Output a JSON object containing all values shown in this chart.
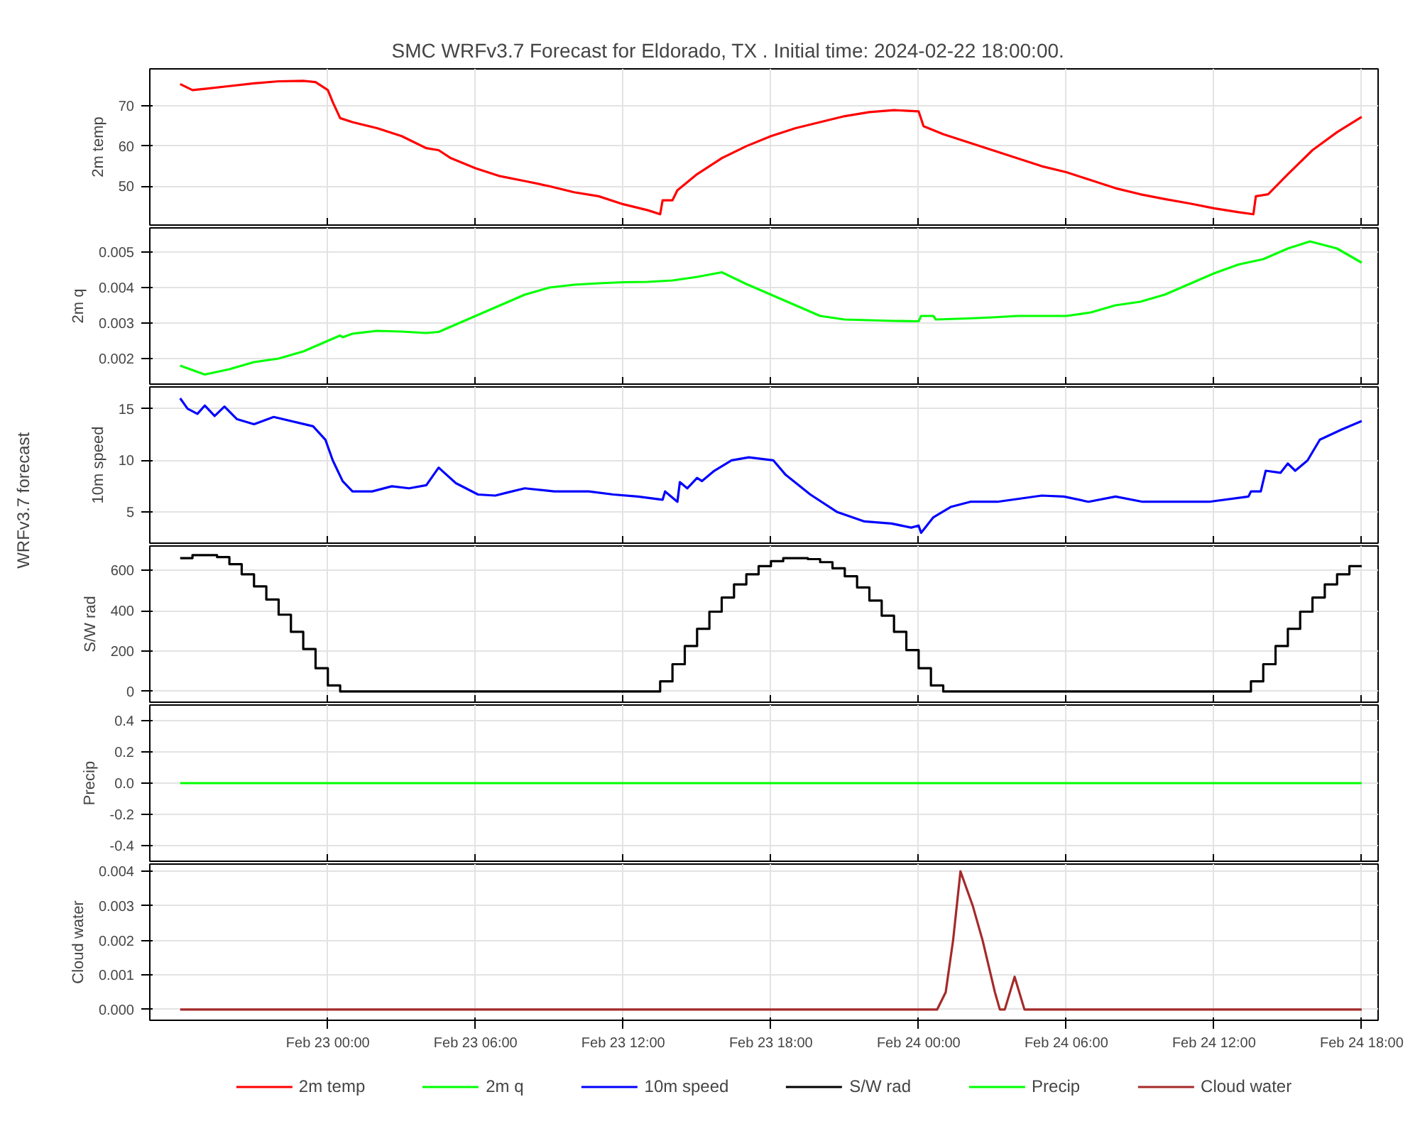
{
  "chart_data": [
    {
      "type": "line",
      "title": "SMC WRFv3.7 Forecast for Eldorado, TX            .  Initial time:  2024-02-22 18:00:00.",
      "ylabel": "2m temp",
      "annotations": [
        "WRFv3.7 forecast"
      ],
      "grid": true,
      "legend": "bottom",
      "tick_labels": "y",
      "xlim": [
        "2024-02-22T16:46",
        "2024-02-24T18:40"
      ],
      "xticks": [
        {
          "value": "2024-02-23T00:00",
          "label": null
        },
        {
          "value": "2024-02-23T06:00",
          "label": null
        },
        {
          "value": "2024-02-23T12:00",
          "label": null
        },
        {
          "value": "2024-02-23T18:00",
          "label": null
        },
        {
          "value": "2024-02-24T00:00",
          "label": null
        },
        {
          "value": "2024-02-24T06:00",
          "label": null
        },
        {
          "value": "2024-02-24T12:00",
          "label": null
        },
        {
          "value": "2024-02-24T18:00",
          "label": null
        }
      ],
      "ylim": [
        40.3,
        79.3
      ],
      "yticks": [
        50,
        60,
        70
      ],
      "series": [
        {
          "name": "2m temp",
          "color": "#ff0000",
          "x": [
            "2024-02-22T18:00",
            "2024-02-22T18:30",
            "2024-02-22T19:00",
            "2024-02-22T20:00",
            "2024-02-22T21:00",
            "2024-02-22T22:00",
            "2024-02-22T23:00",
            "2024-02-22T23:30",
            "2024-02-23T00:00",
            "2024-02-23T00:12",
            "2024-02-23T00:30",
            "2024-02-23T01:00",
            "2024-02-23T02:00",
            "2024-02-23T03:00",
            "2024-02-23T04:00",
            "2024-02-23T04:30",
            "2024-02-23T05:00",
            "2024-02-23T06:00",
            "2024-02-23T07:00",
            "2024-02-23T08:00",
            "2024-02-23T09:00",
            "2024-02-23T10:00",
            "2024-02-23T11:00",
            "2024-02-23T12:00",
            "2024-02-23T13:00",
            "2024-02-23T13:30",
            "2024-02-23T13:36",
            "2024-02-23T14:00",
            "2024-02-23T14:12",
            "2024-02-23T15:00",
            "2024-02-23T16:00",
            "2024-02-23T17:00",
            "2024-02-23T18:00",
            "2024-02-23T19:00",
            "2024-02-23T20:00",
            "2024-02-23T21:00",
            "2024-02-23T22:00",
            "2024-02-23T23:00",
            "2024-02-24T00:00",
            "2024-02-24T00:12",
            "2024-02-24T01:00",
            "2024-02-24T02:00",
            "2024-02-24T03:00",
            "2024-02-24T04:00",
            "2024-02-24T05:00",
            "2024-02-24T06:00",
            "2024-02-24T07:00",
            "2024-02-24T08:00",
            "2024-02-24T09:00",
            "2024-02-24T10:00",
            "2024-02-24T11:00",
            "2024-02-24T12:00",
            "2024-02-24T13:00",
            "2024-02-24T13:36",
            "2024-02-24T13:42",
            "2024-02-24T14:12",
            "2024-02-24T15:00",
            "2024-02-24T16:00",
            "2024-02-24T17:00",
            "2024-02-24T18:00"
          ],
          "values": [
            75.5,
            74,
            74.3,
            75,
            75.7,
            76.2,
            76.3,
            76,
            74,
            71,
            67,
            66,
            64.5,
            62.5,
            59.5,
            59,
            57,
            54.5,
            52.5,
            51.3,
            50,
            48.5,
            47.5,
            45.5,
            44,
            43,
            46.5,
            46.5,
            49,
            53,
            57,
            60,
            62.5,
            64.5,
            66,
            67.5,
            68.5,
            69,
            68.7,
            65,
            63,
            61,
            59,
            57,
            55,
            53.5,
            51.5,
            49.5,
            48,
            46.8,
            45.7,
            44.5,
            43.5,
            43,
            47.5,
            48,
            53,
            59,
            63.5,
            67.3
          ]
        }
      ]
    },
    {
      "type": "line",
      "ylabel": "2m q",
      "grid": true,
      "legend": "bottom",
      "tick_labels": "y",
      "xlim": [
        "2024-02-22T16:46",
        "2024-02-24T18:40"
      ],
      "xticks": [
        {
          "value": "2024-02-23T00:00",
          "label": null
        },
        {
          "value": "2024-02-23T06:00",
          "label": null
        },
        {
          "value": "2024-02-23T12:00",
          "label": null
        },
        {
          "value": "2024-02-23T18:00",
          "label": null
        },
        {
          "value": "2024-02-24T00:00",
          "label": null
        },
        {
          "value": "2024-02-24T06:00",
          "label": null
        },
        {
          "value": "2024-02-24T12:00",
          "label": null
        },
        {
          "value": "2024-02-24T18:00",
          "label": null
        }
      ],
      "ylim": [
        0.00128,
        0.00568
      ],
      "yticks": [
        0.002,
        0.003,
        0.004,
        0.005
      ],
      "series": [
        {
          "name": "2m q",
          "color": "#00ff00",
          "x": [
            "2024-02-22T18:00",
            "2024-02-22T19:00",
            "2024-02-22T20:00",
            "2024-02-22T21:00",
            "2024-02-22T22:00",
            "2024-02-22T23:00",
            "2024-02-23T00:00",
            "2024-02-23T00:30",
            "2024-02-23T00:36",
            "2024-02-23T01:00",
            "2024-02-23T02:00",
            "2024-02-23T03:00",
            "2024-02-23T04:00",
            "2024-02-23T04:30",
            "2024-02-23T05:00",
            "2024-02-23T06:00",
            "2024-02-23T07:00",
            "2024-02-23T08:00",
            "2024-02-23T09:00",
            "2024-02-23T10:00",
            "2024-02-23T11:00",
            "2024-02-23T12:00",
            "2024-02-23T13:00",
            "2024-02-23T14:00",
            "2024-02-23T15:00",
            "2024-02-23T16:00",
            "2024-02-23T17:00",
            "2024-02-23T18:00",
            "2024-02-23T19:00",
            "2024-02-23T20:00",
            "2024-02-23T21:00",
            "2024-02-23T22:00",
            "2024-02-23T23:00",
            "2024-02-24T00:00",
            "2024-02-24T00:06",
            "2024-02-24T00:36",
            "2024-02-24T00:42",
            "2024-02-24T02:00",
            "2024-02-24T03:00",
            "2024-02-24T04:00",
            "2024-02-24T05:00",
            "2024-02-24T06:00",
            "2024-02-24T07:00",
            "2024-02-24T08:00",
            "2024-02-24T09:00",
            "2024-02-24T10:00",
            "2024-02-24T11:00",
            "2024-02-24T12:00",
            "2024-02-24T13:00",
            "2024-02-24T14:00",
            "2024-02-24T15:00",
            "2024-02-24T15:54",
            "2024-02-24T17:00",
            "2024-02-24T18:00"
          ],
          "values": [
            0.0018,
            0.00155,
            0.0017,
            0.0019,
            0.002,
            0.0022,
            0.0025,
            0.00265,
            0.0026,
            0.0027,
            0.00278,
            0.00276,
            0.00272,
            0.00275,
            0.0029,
            0.0032,
            0.0035,
            0.0038,
            0.004,
            0.00408,
            0.00412,
            0.00415,
            0.00416,
            0.0042,
            0.0043,
            0.00443,
            0.0041,
            0.0038,
            0.0035,
            0.0032,
            0.0031,
            0.00308,
            0.00306,
            0.00305,
            0.0032,
            0.0032,
            0.0031,
            0.00313,
            0.00316,
            0.0032,
            0.0032,
            0.0032,
            0.0033,
            0.0035,
            0.0036,
            0.0038,
            0.0041,
            0.0044,
            0.00465,
            0.0048,
            0.0051,
            0.0053,
            0.0051,
            0.0047
          ]
        }
      ]
    },
    {
      "type": "line",
      "ylabel": "10m speed",
      "grid": true,
      "legend": "bottom",
      "tick_labels": "y",
      "xlim": [
        "2024-02-22T16:46",
        "2024-02-24T18:40"
      ],
      "xticks": [
        {
          "value": "2024-02-23T00:00",
          "label": null
        },
        {
          "value": "2024-02-23T06:00",
          "label": null
        },
        {
          "value": "2024-02-23T12:00",
          "label": null
        },
        {
          "value": "2024-02-23T18:00",
          "label": null
        },
        {
          "value": "2024-02-24T00:00",
          "label": null
        },
        {
          "value": "2024-02-24T06:00",
          "label": null
        },
        {
          "value": "2024-02-24T12:00",
          "label": null
        },
        {
          "value": "2024-02-24T18:00",
          "label": null
        }
      ],
      "ylim": [
        2.0,
        17.1
      ],
      "yticks": [
        5,
        10,
        15
      ],
      "series": [
        {
          "name": "10m speed",
          "color": "#0000ff",
          "x": [
            "2024-02-22T18:00",
            "2024-02-22T18:18",
            "2024-02-22T18:42",
            "2024-02-22T19:00",
            "2024-02-22T19:24",
            "2024-02-22T19:48",
            "2024-02-22T20:18",
            "2024-02-22T21:00",
            "2024-02-22T21:48",
            "2024-02-22T23:24",
            "2024-02-22T23:54",
            "2024-02-23T00:12",
            "2024-02-23T00:36",
            "2024-02-23T01:00",
            "2024-02-23T01:48",
            "2024-02-23T02:36",
            "2024-02-23T03:18",
            "2024-02-23T04:00",
            "2024-02-23T04:30",
            "2024-02-23T05:12",
            "2024-02-23T06:06",
            "2024-02-23T06:48",
            "2024-02-23T07:18",
            "2024-02-23T08:00",
            "2024-02-23T09:12",
            "2024-02-23T10:36",
            "2024-02-23T11:36",
            "2024-02-23T12:36",
            "2024-02-23T13:36",
            "2024-02-23T13:42",
            "2024-02-23T14:12",
            "2024-02-23T14:18",
            "2024-02-23T14:36",
            "2024-02-23T15:00",
            "2024-02-23T15:12",
            "2024-02-23T15:42",
            "2024-02-23T16:24",
            "2024-02-23T17:06",
            "2024-02-23T18:06",
            "2024-02-23T18:36",
            "2024-02-23T19:36",
            "2024-02-23T20:42",
            "2024-02-23T21:48",
            "2024-02-23T22:54",
            "2024-02-23T23:42",
            "2024-02-24T00:00",
            "2024-02-24T00:06",
            "2024-02-24T00:36",
            "2024-02-24T01:18",
            "2024-02-24T02:06",
            "2024-02-24T03:12",
            "2024-02-24T05:00",
            "2024-02-24T05:54",
            "2024-02-24T06:54",
            "2024-02-24T08:00",
            "2024-02-24T09:06",
            "2024-02-24T11:48",
            "2024-02-24T13:24",
            "2024-02-24T13:30",
            "2024-02-24T13:54",
            "2024-02-24T14:06",
            "2024-02-24T14:42",
            "2024-02-24T15:00",
            "2024-02-24T15:18",
            "2024-02-24T15:48",
            "2024-02-24T16:18",
            "2024-02-24T17:12",
            "2024-02-24T18:00"
          ],
          "values": [
            16,
            15,
            14.5,
            15.3,
            14.3,
            15.2,
            14,
            13.5,
            14.2,
            13.3,
            12,
            10,
            8,
            7,
            7,
            7.5,
            7.3,
            7.6,
            9.3,
            7.8,
            6.7,
            6.6,
            6.9,
            7.3,
            7,
            7,
            6.7,
            6.5,
            6.2,
            7,
            6,
            7.9,
            7.3,
            8.3,
            8,
            9,
            10,
            10.3,
            10,
            8.6,
            6.7,
            5,
            4.1,
            3.9,
            3.5,
            3.7,
            3,
            4.5,
            5.5,
            6,
            6,
            6.6,
            6.5,
            6,
            6.5,
            6,
            6,
            6.5,
            7,
            7,
            9,
            8.8,
            9.7,
            9,
            10,
            12,
            13,
            13.8
          ]
        }
      ]
    },
    {
      "type": "step",
      "ylabel": "S/W rad",
      "grid": true,
      "legend": "bottom",
      "tick_labels": "y",
      "xlim": [
        "2024-02-22T16:46",
        "2024-02-24T18:40"
      ],
      "xticks": [
        {
          "value": "2024-02-23T00:00",
          "label": null
        },
        {
          "value": "2024-02-23T06:00",
          "label": null
        },
        {
          "value": "2024-02-23T12:00",
          "label": null
        },
        {
          "value": "2024-02-23T18:00",
          "label": null
        },
        {
          "value": "2024-02-24T00:00",
          "label": null
        },
        {
          "value": "2024-02-24T06:00",
          "label": null
        },
        {
          "value": "2024-02-24T12:00",
          "label": null
        },
        {
          "value": "2024-02-24T18:00",
          "label": null
        }
      ],
      "ylim": [
        -53,
        720
      ],
      "yticks": [
        0,
        200,
        400,
        600
      ],
      "series": [
        {
          "name": "S/W rad",
          "color": "#000000",
          "x": [
            "2024-02-22T18:00",
            "2024-02-22T18:30",
            "2024-02-22T19:30",
            "2024-02-22T20:00",
            "2024-02-22T20:30",
            "2024-02-22T21:00",
            "2024-02-22T21:30",
            "2024-02-22T22:00",
            "2024-02-22T22:30",
            "2024-02-22T23:00",
            "2024-02-22T23:30",
            "2024-02-23T00:00",
            "2024-02-23T00:30",
            "2024-02-23T13:30",
            "2024-02-23T14:00",
            "2024-02-23T14:30",
            "2024-02-23T15:00",
            "2024-02-23T15:30",
            "2024-02-23T16:00",
            "2024-02-23T16:30",
            "2024-02-23T17:00",
            "2024-02-23T17:30",
            "2024-02-23T18:00",
            "2024-02-23T18:30",
            "2024-02-23T19:30",
            "2024-02-23T20:00",
            "2024-02-23T20:30",
            "2024-02-23T21:00",
            "2024-02-23T21:30",
            "2024-02-23T22:00",
            "2024-02-23T22:30",
            "2024-02-23T23:00",
            "2024-02-23T23:30",
            "2024-02-24T00:00",
            "2024-02-24T00:30",
            "2024-02-24T01:00",
            "2024-02-24T13:30",
            "2024-02-24T14:00",
            "2024-02-24T14:30",
            "2024-02-24T15:00",
            "2024-02-24T15:30",
            "2024-02-24T16:00",
            "2024-02-24T16:30",
            "2024-02-24T17:00",
            "2024-02-24T17:30",
            "2024-02-24T18:00"
          ],
          "values": [
            660,
            675,
            665,
            630,
            580,
            520,
            455,
            380,
            295,
            210,
            115,
            30,
            0,
            50,
            135,
            225,
            310,
            395,
            465,
            530,
            580,
            620,
            645,
            660,
            655,
            640,
            610,
            570,
            515,
            450,
            375,
            295,
            205,
            115,
            30,
            0,
            50,
            135,
            225,
            310,
            395,
            465,
            530,
            580,
            620,
            620
          ]
        }
      ]
    },
    {
      "type": "line",
      "ylabel": "Precip",
      "grid": true,
      "legend": "bottom",
      "tick_labels": "y",
      "xlim": [
        "2024-02-22T16:46",
        "2024-02-24T18:40"
      ],
      "xticks": [
        {
          "value": "2024-02-23T00:00",
          "label": null
        },
        {
          "value": "2024-02-23T06:00",
          "label": null
        },
        {
          "value": "2024-02-23T12:00",
          "label": null
        },
        {
          "value": "2024-02-23T18:00",
          "label": null
        },
        {
          "value": "2024-02-24T00:00",
          "label": null
        },
        {
          "value": "2024-02-24T06:00",
          "label": null
        },
        {
          "value": "2024-02-24T12:00",
          "label": null
        },
        {
          "value": "2024-02-24T18:00",
          "label": null
        }
      ],
      "ylim": [
        -0.5,
        0.5
      ],
      "yticks": [
        -0.4,
        -0.2,
        {
          "value": 0,
          "label": "0.0"
        },
        0.2,
        0.4
      ],
      "series": [
        {
          "name": "Precip",
          "color": "#00ff00",
          "x": [
            "2024-02-22T18:00",
            "2024-02-24T18:00"
          ],
          "values": [
            0,
            0
          ]
        }
      ]
    },
    {
      "type": "line",
      "ylabel": "Cloud water",
      "grid": true,
      "legend": "bottom",
      "xlim": [
        "2024-02-22T16:46",
        "2024-02-24T18:40"
      ],
      "xticks": [
        {
          "value": "2024-02-23T00:00",
          "label": "Feb 23 00:00"
        },
        {
          "value": "2024-02-23T06:00",
          "label": "Feb 23 06:00"
        },
        {
          "value": "2024-02-23T12:00",
          "label": "Feb 23 12:00"
        },
        {
          "value": "2024-02-23T18:00",
          "label": "Feb 23 18:00"
        },
        {
          "value": "2024-02-24T00:00",
          "label": "Feb 24 00:00"
        },
        {
          "value": "2024-02-24T06:00",
          "label": "Feb 24 06:00"
        },
        {
          "value": "2024-02-24T12:00",
          "label": "Feb 24 12:00"
        },
        {
          "value": "2024-02-24T18:00",
          "label": "Feb 24 18:00"
        }
      ],
      "ylim": [
        -0.00031,
        0.00421
      ],
      "yticks": [
        {
          "value": 0,
          "label": "0.000"
        },
        0.001,
        0.002,
        0.003,
        0.004
      ],
      "series": [
        {
          "name": "Cloud water",
          "color": "#a52a2a",
          "x": [
            "2024-02-22T18:00",
            "2024-02-24T00:45",
            "2024-02-24T01:06",
            "2024-02-24T01:24",
            "2024-02-24T01:42",
            "2024-02-24T02:12",
            "2024-02-24T02:36",
            "2024-02-24T03:06",
            "2024-02-24T03:18",
            "2024-02-24T03:30",
            "2024-02-24T03:54",
            "2024-02-24T04:18",
            "2024-02-24T18:00"
          ],
          "values": [
            0,
            0,
            0.0005,
            0.002,
            0.004,
            0.003,
            0.002,
            0.0005,
            0,
            0,
            0.00095,
            0,
            0
          ]
        }
      ]
    }
  ]
}
